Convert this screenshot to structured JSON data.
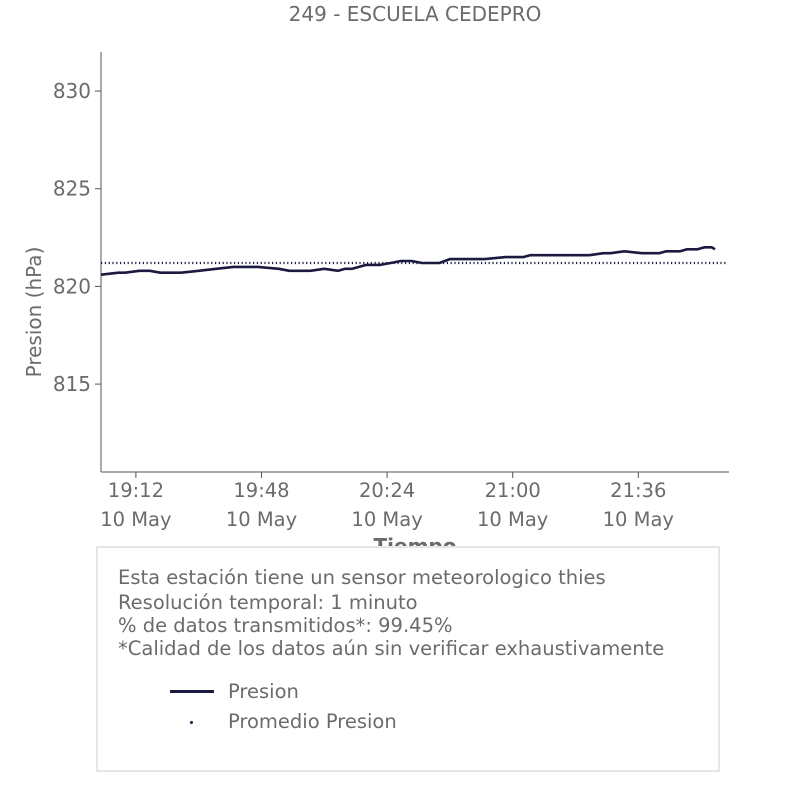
{
  "chart_data": {
    "type": "line",
    "title": "249 - ESCUELA CEDEPRO",
    "xlabel": "Tiempo",
    "ylabel": "Presion (hPa)",
    "xlim": [
      "2024-05-10 19:02",
      "2024-05-10 22:02"
    ],
    "ylim": [
      810.5,
      832
    ],
    "yticks": [
      815,
      820,
      825,
      830
    ],
    "xticks": [
      {
        "time": "19:12",
        "date": "10 May"
      },
      {
        "time": "19:48",
        "date": "10 May"
      },
      {
        "time": "20:24",
        "date": "10 May"
      },
      {
        "time": "21:00",
        "date": "10 May"
      },
      {
        "time": "21:36",
        "date": "10 May"
      }
    ],
    "series": [
      {
        "name": "Presion",
        "style": "solid",
        "color": "#1b1a40",
        "x": [
          "19:02",
          "19:07",
          "19:09",
          "19:13",
          "19:16",
          "19:19",
          "19:21",
          "19:25",
          "19:30",
          "19:35",
          "19:40",
          "19:41",
          "19:44",
          "19:47",
          "19:53",
          "19:56",
          "19:59",
          "20:02",
          "20:06",
          "20:10",
          "20:12",
          "20:14",
          "20:18",
          "20:22",
          "20:25",
          "20:28",
          "20:31",
          "20:34",
          "20:39",
          "20:42",
          "20:44",
          "20:47",
          "20:52",
          "20:58",
          "21:00",
          "21:03",
          "21:05",
          "21:08",
          "21:12",
          "21:17",
          "21:22",
          "21:26",
          "21:28",
          "21:32",
          "21:37",
          "21:39",
          "21:42",
          "21:44",
          "21:46",
          "21:48",
          "21:50",
          "21:53",
          "21:55",
          "21:57",
          "21:58"
        ],
        "values": [
          820.6,
          820.7,
          820.7,
          820.8,
          820.8,
          820.7,
          820.7,
          820.7,
          820.8,
          820.9,
          821.0,
          821.0,
          821.0,
          821.0,
          820.9,
          820.8,
          820.8,
          820.8,
          820.9,
          820.8,
          820.9,
          820.9,
          821.1,
          821.1,
          821.2,
          821.3,
          821.3,
          821.2,
          821.2,
          821.4,
          821.4,
          821.4,
          821.4,
          821.5,
          821.5,
          821.5,
          821.6,
          821.6,
          821.6,
          821.6,
          821.6,
          821.7,
          821.7,
          821.8,
          821.7,
          821.7,
          821.7,
          821.8,
          821.8,
          821.8,
          821.9,
          821.9,
          822.0,
          822.0,
          821.9
        ]
      },
      {
        "name": "Promedio Presion",
        "style": "dotted",
        "color": "#1b1a40",
        "x": [
          "19:02",
          "22:01"
        ],
        "values": [
          821.2,
          821.2
        ]
      }
    ],
    "legend": "bottom-box",
    "grid": false
  },
  "info": {
    "lines": [
      "Esta estación tiene un sensor meteorologico thies",
      "Resolución temporal: 1 minuto",
      "% de datos transmitidos*: 99.45%",
      "*Calidad de los datos aún sin verificar exhaustivamente"
    ]
  },
  "colors": {
    "series": "#1b1a40",
    "text": "#6b6b6b",
    "axis": "#555555",
    "box_border": "#e6e6e6"
  }
}
